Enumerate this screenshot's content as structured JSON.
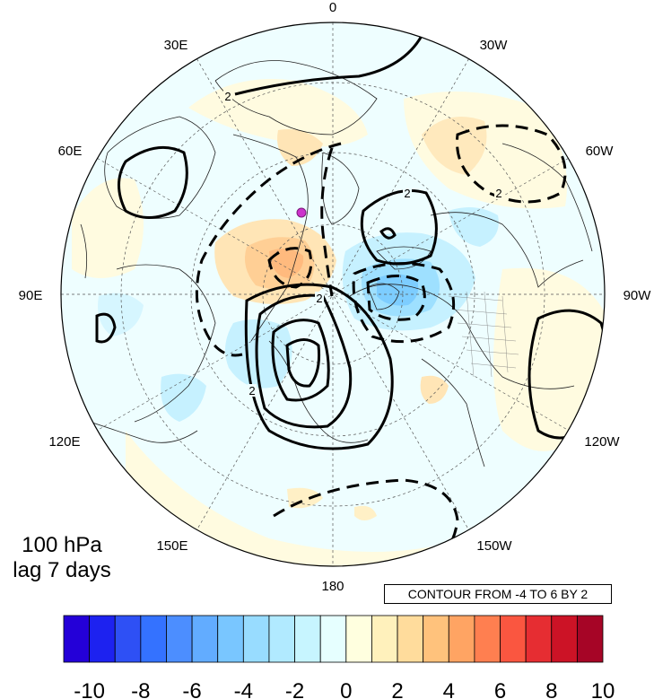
{
  "map": {
    "projection": "polar-stereographic-north",
    "level_label": "100 hPa",
    "lag_label": "lag 7 days",
    "contour_note": "CONTOUR FROM -4 TO 6 BY 2",
    "marker_color": "#cc33cc",
    "longitude_labels": [
      {
        "id": "lon-0",
        "text": "0"
      },
      {
        "id": "lon-30w",
        "text": "30W"
      },
      {
        "id": "lon-60w",
        "text": "60W"
      },
      {
        "id": "lon-90w",
        "text": "90W"
      },
      {
        "id": "lon-120w",
        "text": "120W"
      },
      {
        "id": "lon-150w",
        "text": "150W"
      },
      {
        "id": "lon-180",
        "text": "180"
      },
      {
        "id": "lon-150e",
        "text": "150E"
      },
      {
        "id": "lon-120e",
        "text": "120E"
      },
      {
        "id": "lon-90e",
        "text": "90E"
      },
      {
        "id": "lon-60e",
        "text": "60E"
      },
      {
        "id": "lon-30e",
        "text": "30E"
      }
    ],
    "contour_labels": [
      "2",
      "2",
      "2",
      "2",
      "2"
    ]
  },
  "colorbar": {
    "colors": [
      "#2400d8",
      "#1d22f0",
      "#2e50f5",
      "#3472ff",
      "#4c8eff",
      "#62acff",
      "#79c6ff",
      "#98dcff",
      "#b1eaff",
      "#c7f5ff",
      "#e6ffff",
      "#ffffdf",
      "#fff1bc",
      "#ffdc9c",
      "#ffc27c",
      "#ffa463",
      "#ff7f50",
      "#fa5640",
      "#e62d32",
      "#cc1326",
      "#a60526"
    ],
    "ticks": [
      "-10",
      "-8",
      "-6",
      "-4",
      "-2",
      "0",
      "2",
      "4",
      "6",
      "8",
      "10"
    ]
  }
}
